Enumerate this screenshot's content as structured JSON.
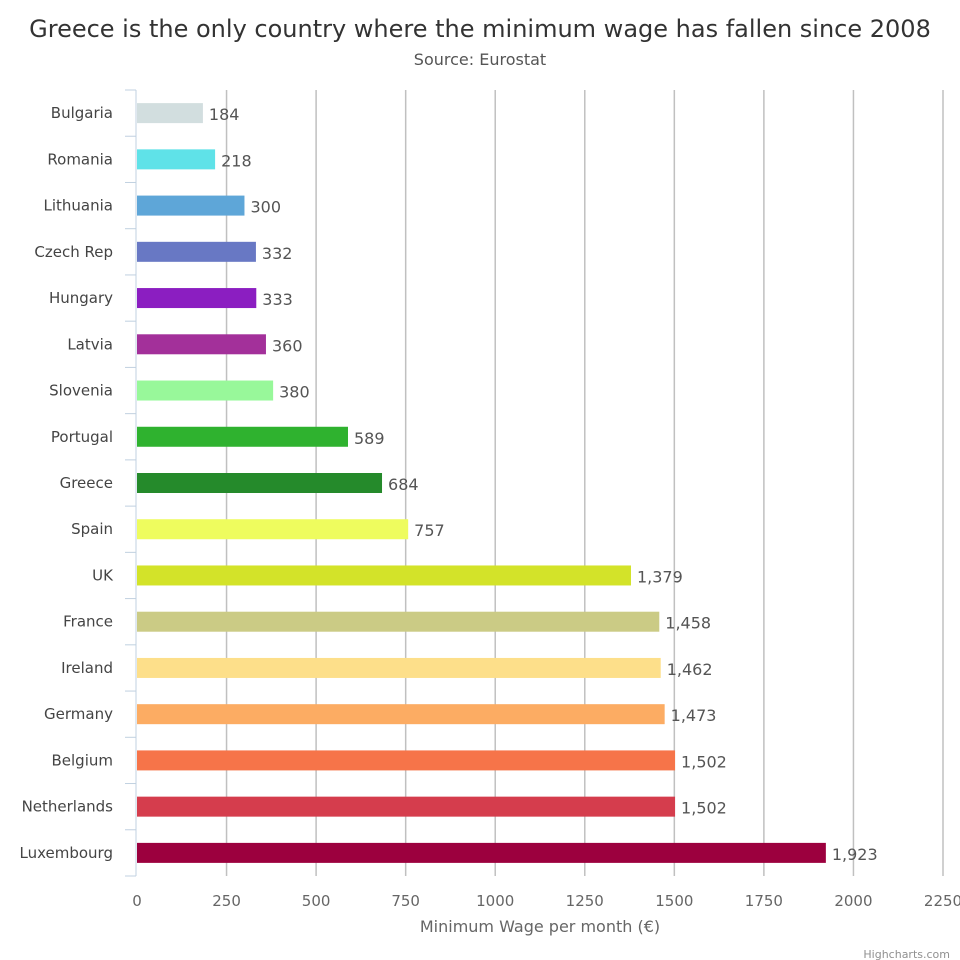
{
  "chart_data": {
    "type": "bar",
    "orientation": "horizontal",
    "title": "Greece is the only country where the minimum wage has fallen since 2008",
    "subtitle": "Source: Eurostat",
    "xlabel": "Minimum Wage per month (€)",
    "ylabel": "",
    "xlim": [
      0,
      2250
    ],
    "ticks": [
      0,
      250,
      500,
      750,
      1000,
      1250,
      1500,
      1750,
      2000,
      2250
    ],
    "grid": true,
    "legend": "none",
    "categories": [
      "Bulgaria",
      "Romania",
      "Lithuania",
      "Czech Rep",
      "Hungary",
      "Latvia",
      "Slovenia",
      "Portugal",
      "Greece",
      "Spain",
      "UK",
      "France",
      "Ireland",
      "Germany",
      "Belgium",
      "Netherlands",
      "Luxembourg"
    ],
    "values": [
      184,
      218,
      300,
      332,
      333,
      360,
      380,
      589,
      684,
      757,
      1379,
      1458,
      1462,
      1473,
      1502,
      1502,
      1923
    ],
    "value_labels": [
      "184",
      "218",
      "300",
      "332",
      "333",
      "360",
      "380",
      "589",
      "684",
      "757",
      "1,379",
      "1,458",
      "1,462",
      "1,473",
      "1,502",
      "1,502",
      "1,923"
    ],
    "colors": [
      "#d2dedf",
      "#5fe2e8",
      "#5ea6d8",
      "#6878c4",
      "#8b1ec1",
      "#a3309a",
      "#98f89a",
      "#2fb22f",
      "#258a2b",
      "#eefc5e",
      "#d3e329",
      "#cbcb85",
      "#fddf8a",
      "#fcac63",
      "#f67449",
      "#d53d4d",
      "#9c003e"
    ]
  },
  "credit": "Highcharts.com"
}
